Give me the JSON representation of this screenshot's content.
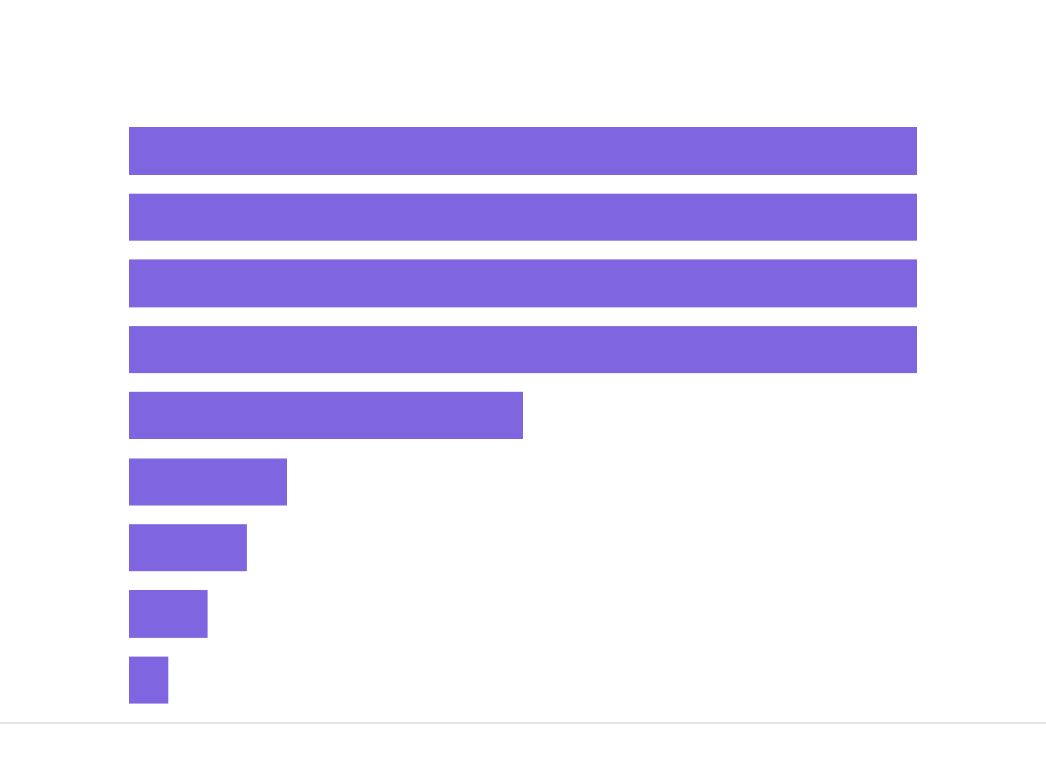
{
  "chart_data": {
    "type": "hbar",
    "categories": [
      null,
      null,
      null,
      null,
      null,
      null,
      null,
      null,
      null
    ],
    "values": [
      20,
      20,
      20,
      20,
      10,
      4,
      3,
      2,
      1
    ],
    "color": "#7f66e0",
    "xlim": [
      0,
      20
    ]
  }
}
